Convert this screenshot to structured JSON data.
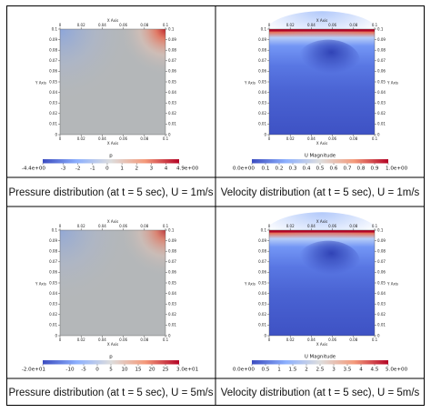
{
  "cells": [
    {
      "id": "pressure-u1",
      "caption": "Pressure distribution (at t = 5 sec), U = 1m/s",
      "field": "pressure",
      "intensity": 1.0,
      "top_axis_label": "X Axis",
      "bottom_axis_label": "X Axis",
      "left_axis_label": "Y Axis",
      "right_axis_label": "",
      "x_ticks": [
        "0",
        "0.02",
        "0.04",
        "0.06",
        "0.08",
        "0.1"
      ],
      "y_ticks": [
        "0",
        "0.01",
        "0.02",
        "0.03",
        "0.04",
        "0.05",
        "0.06",
        "0.07",
        "0.08",
        "0.09",
        "0.1"
      ],
      "colorbar": {
        "title": "p",
        "ticks": [
          "-4.4e+00",
          "-3",
          "-2",
          "-1",
          "0",
          "1",
          "2",
          "3",
          "4",
          "4.9e+00"
        ],
        "tick_values": [
          -4.4,
          -3,
          -2,
          -1,
          0,
          1,
          2,
          3,
          4,
          4.9
        ],
        "range": [
          -4.4,
          4.9
        ]
      }
    },
    {
      "id": "velocity-u1",
      "caption": "Velocity distribution (at t = 5 sec), U = 1m/s",
      "field": "velocity",
      "intensity": 1.0,
      "top_axis_label": "X Axis",
      "bottom_axis_label": "X Axis",
      "left_axis_label": "Y Axis",
      "right_axis_label": "Y Axis",
      "x_ticks": [
        "0",
        "0.02",
        "0.04",
        "0.06",
        "0.08",
        "0.1"
      ],
      "y_ticks": [
        "0",
        "0.01",
        "0.02",
        "0.03",
        "0.04",
        "0.05",
        "0.06",
        "0.07",
        "0.08",
        "0.09",
        "0.1"
      ],
      "colorbar": {
        "title": "U Magnitude",
        "ticks": [
          "0.0e+00",
          "0.1",
          "0.2",
          "0.3",
          "0.4",
          "0.5",
          "0.6",
          "0.7",
          "0.8",
          "0.9",
          "1.0e+00"
        ],
        "tick_values": [
          0,
          0.1,
          0.2,
          0.3,
          0.4,
          0.5,
          0.6,
          0.7,
          0.8,
          0.9,
          1.0
        ],
        "range": [
          0,
          1.0
        ]
      }
    },
    {
      "id": "pressure-u5",
      "caption": "Pressure distribution (at t = 5 sec), U = 5m/s",
      "field": "pressure",
      "intensity": 0.85,
      "top_axis_label": "X Axis",
      "bottom_axis_label": "X Axis",
      "left_axis_label": "Y Axis",
      "right_axis_label": "",
      "x_ticks": [
        "0",
        "0.02",
        "0.04",
        "0.06",
        "0.08",
        "0.1"
      ],
      "y_ticks": [
        "0",
        "0.01",
        "0.02",
        "0.03",
        "0.04",
        "0.05",
        "0.06",
        "0.07",
        "0.08",
        "0.09",
        "0.1"
      ],
      "colorbar": {
        "title": "p",
        "ticks": [
          "-2.0e+01",
          "-10",
          "-5",
          "0",
          "5",
          "10",
          "15",
          "20",
          "25",
          "3.0e+01"
        ],
        "tick_values": [
          -20,
          -10,
          -5,
          0,
          5,
          10,
          15,
          20,
          25,
          30
        ],
        "range": [
          -20,
          30
        ]
      }
    },
    {
      "id": "velocity-u5",
      "caption": "Velocity distribution (at t = 5 sec), U = 5m/s",
      "field": "velocity",
      "intensity": 1.0,
      "top_axis_label": "X Axis",
      "bottom_axis_label": "X Axis",
      "left_axis_label": "Y Axis",
      "right_axis_label": "Y Axis",
      "x_ticks": [
        "0",
        "0.02",
        "0.04",
        "0.06",
        "0.08",
        "0.1"
      ],
      "y_ticks": [
        "0",
        "0.01",
        "0.02",
        "0.03",
        "0.04",
        "0.05",
        "0.06",
        "0.07",
        "0.08",
        "0.09",
        "0.1"
      ],
      "colorbar": {
        "title": "U Magnitude",
        "ticks": [
          "0.0e+00",
          "0.5",
          "1",
          "1.5",
          "2",
          "2.5",
          "3",
          "3.5",
          "4",
          "4.5",
          "5.0e+00"
        ],
        "tick_values": [
          0,
          0.5,
          1,
          1.5,
          2,
          2.5,
          3,
          3.5,
          4,
          4.5,
          5.0
        ],
        "range": [
          0,
          5.0
        ]
      }
    }
  ],
  "colors": {
    "cool": "#3b4cc0",
    "mid": "#dddddd",
    "warm": "#b40426",
    "pressure_background": "#b4b7b9",
    "table_border": "#000000"
  }
}
